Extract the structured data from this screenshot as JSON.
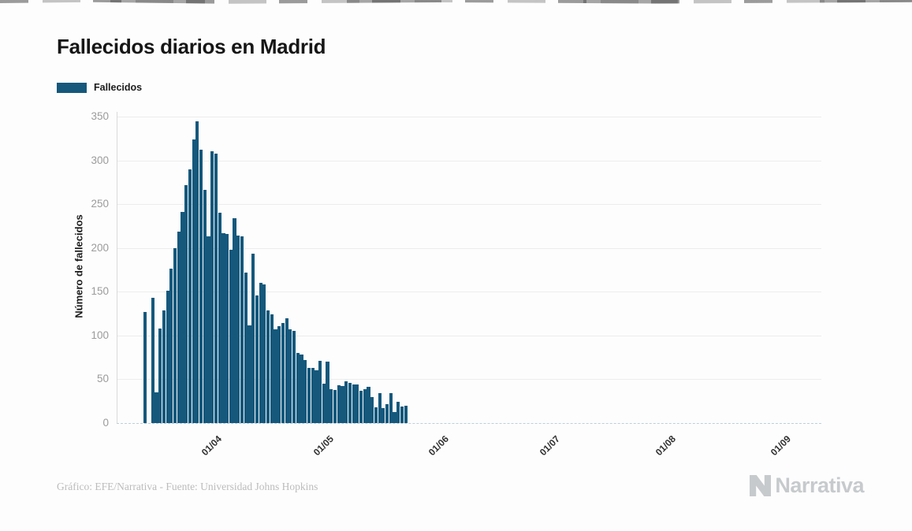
{
  "page": {
    "title": "Fallecidos diarios en Madrid",
    "legend": {
      "label": "Fallecidos",
      "swatch_color": "#15587c"
    },
    "footer": {
      "credit": "Gráfico: EFE/Narrativa - Fuente: Universidad Johns Hopkins"
    },
    "brand": {
      "name": "Narrativa",
      "color": "#c7cacd"
    }
  },
  "chart_data": {
    "type": "bar",
    "title": "Fallecidos diarios en Madrid",
    "series_name": "Fallecidos",
    "xlabel": "",
    "ylabel": "Número de fallecidos",
    "ylim": [
      0,
      350
    ],
    "y_ticks": [
      0,
      50,
      100,
      150,
      200,
      250,
      300,
      350
    ],
    "x_ticks": [
      "01/04",
      "01/05",
      "01/06",
      "01/07",
      "01/08",
      "01/09"
    ],
    "grid": true,
    "legend_position": "top-left",
    "bar_color": "#15587c",
    "dates": [
      "13/03",
      "14/03",
      "15/03",
      "16/03",
      "17/03",
      "18/03",
      "19/03",
      "20/03",
      "21/03",
      "22/03",
      "23/03",
      "24/03",
      "25/03",
      "26/03",
      "27/03",
      "28/03",
      "29/03",
      "30/03",
      "31/03",
      "01/04",
      "02/04",
      "03/04",
      "04/04",
      "05/04",
      "06/04",
      "07/04",
      "08/04",
      "09/04",
      "10/04",
      "11/04",
      "12/04",
      "13/04",
      "14/04",
      "15/04",
      "16/04",
      "17/04",
      "18/04",
      "19/04",
      "20/04",
      "21/04",
      "22/04",
      "23/04",
      "24/04",
      "25/04",
      "26/04",
      "27/04",
      "28/04",
      "29/04",
      "30/04",
      "01/05",
      "02/05",
      "03/05",
      "04/05",
      "05/05",
      "06/05",
      "07/05",
      "08/05",
      "09/05",
      "10/05",
      "11/05",
      "12/05",
      "13/05",
      "14/05",
      "15/05",
      "16/05",
      "17/05",
      "18/05",
      "19/05",
      "20/05",
      "21/05",
      "22/05"
    ],
    "values": [
      127,
      0,
      143,
      35,
      108,
      129,
      151,
      176,
      200,
      219,
      241,
      272,
      290,
      324,
      345,
      312,
      266,
      213,
      310,
      308,
      240,
      217,
      216,
      198,
      234,
      214,
      213,
      172,
      112,
      193,
      146,
      160,
      158,
      129,
      124,
      107,
      111,
      114,
      120,
      107,
      105,
      80,
      78,
      72,
      63,
      63,
      60,
      71,
      45,
      70,
      39,
      38,
      43,
      42,
      48,
      46,
      44,
      44,
      37,
      39,
      41,
      30,
      18,
      34,
      17,
      22,
      34,
      13,
      24,
      19,
      20
    ]
  }
}
